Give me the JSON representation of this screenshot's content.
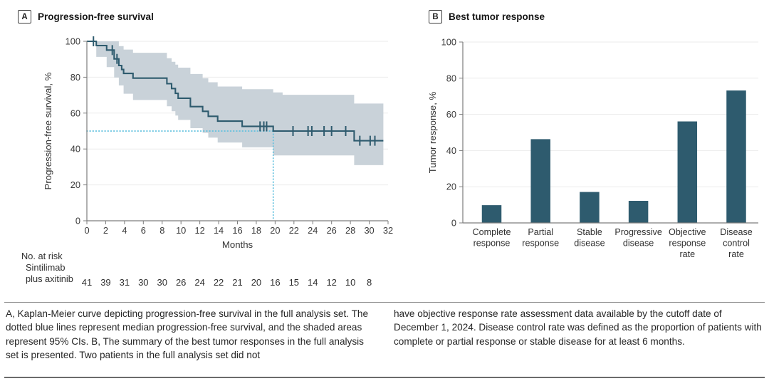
{
  "panels": {
    "a": {
      "badge": "A",
      "title": "Progression-free survival"
    },
    "b": {
      "badge": "B",
      "title": "Best tumor response"
    }
  },
  "risk_table": {
    "label": "No. at risk",
    "row_label_line1": "Sintilimab",
    "row_label_line2": "plus axitinib",
    "months": [
      0,
      2,
      4,
      6,
      8,
      10,
      12,
      14,
      16,
      18,
      20,
      22,
      24,
      26,
      28,
      30
    ],
    "values": [
      41,
      39,
      31,
      30,
      30,
      26,
      24,
      22,
      21,
      20,
      16,
      15,
      14,
      12,
      10,
      8
    ]
  },
  "caption": {
    "left": "A, Kaplan-Meier curve depicting progression-free survival in the full analysis set. The dotted blue lines represent median progression-free survival, and the shaded areas represent 95% CIs. B, The summary of the best tumor responses in the full analysis set is presented. Two patients in the full analysis set did not",
    "right": "have objective response rate assessment data available by the cutoff date of December 1, 2024. Disease control rate was defined as the proportion of patients with complete or partial response or stable disease for at least 6 months."
  },
  "chart_data": [
    {
      "type": "line",
      "subtype": "kaplan_meier_step",
      "panel": "A",
      "title": "Progression-free survival",
      "xlabel": "Months",
      "ylabel": "Progression-free survival, %",
      "xlim": [
        0,
        32
      ],
      "ylim": [
        0,
        100
      ],
      "xticks": [
        0,
        2,
        4,
        6,
        8,
        10,
        12,
        14,
        16,
        18,
        20,
        22,
        24,
        26,
        28,
        30,
        32
      ],
      "yticks": [
        0,
        20,
        40,
        60,
        80,
        100
      ],
      "grid": "horizontal",
      "legend_position": "none",
      "colors": {
        "line": "#2e5b6e",
        "ci_band": "#c9d2d9",
        "median_dotted": "#5fc0de"
      },
      "median_reference": {
        "x": 19.8,
        "y": 50
      },
      "series": [
        {
          "name": "Sintilimab plus axitinib",
          "steps": [
            [
              0,
              100
            ],
            [
              1.0,
              97.6
            ],
            [
              2.1,
              95.1
            ],
            [
              2.9,
              90.2
            ],
            [
              3.4,
              86.5
            ],
            [
              3.7,
              84.3
            ],
            [
              3.9,
              82.1
            ],
            [
              4.9,
              79.5
            ],
            [
              8.5,
              76.4
            ],
            [
              9.0,
              73.7
            ],
            [
              9.4,
              71.0
            ],
            [
              9.7,
              68.3
            ],
            [
              11.0,
              63.6
            ],
            [
              12.3,
              61.0
            ],
            [
              12.9,
              58.2
            ],
            [
              13.9,
              55.5
            ],
            [
              16.5,
              52.6
            ],
            [
              19.8,
              50.0
            ],
            [
              28.4,
              44.6
            ]
          ],
          "end_time": 31.5,
          "censor_marks": [
            [
              0.7,
              100
            ],
            [
              2.7,
              95.1
            ],
            [
              3.2,
              90.2
            ],
            [
              18.4,
              52.6
            ],
            [
              18.8,
              52.6
            ],
            [
              19.1,
              52.6
            ],
            [
              21.9,
              50.0
            ],
            [
              23.5,
              50.0
            ],
            [
              23.9,
              50.0
            ],
            [
              25.2,
              50.0
            ],
            [
              26.0,
              50.0
            ],
            [
              27.5,
              50.0
            ],
            [
              29.0,
              44.6
            ],
            [
              30.1,
              44.6
            ],
            [
              30.6,
              44.6
            ]
          ],
          "ci_upper": [
            [
              0,
              100
            ],
            [
              3.4,
              97.3
            ],
            [
              3.9,
              95.4
            ],
            [
              4.9,
              93.6
            ],
            [
              8.5,
              90.6
            ],
            [
              9.0,
              88.6
            ],
            [
              9.4,
              87.0
            ],
            [
              9.7,
              85.3
            ],
            [
              11.0,
              81.8
            ],
            [
              12.3,
              79.5
            ],
            [
              12.9,
              77.2
            ],
            [
              13.9,
              74.8
            ],
            [
              16.5,
              73.3
            ],
            [
              19.8,
              71.5
            ],
            [
              20.8,
              70.2
            ],
            [
              28.4,
              65.3
            ]
          ],
          "ci_lower": [
            [
              0,
              100
            ],
            [
              1.0,
              91.3
            ],
            [
              2.1,
              85.6
            ],
            [
              2.9,
              79.8
            ],
            [
              3.4,
              75.4
            ],
            [
              3.9,
              70.8
            ],
            [
              4.9,
              67.3
            ],
            [
              8.5,
              63.8
            ],
            [
              9.0,
              61.0
            ],
            [
              9.4,
              58.6
            ],
            [
              9.7,
              56.2
            ],
            [
              11.0,
              51.6
            ],
            [
              12.3,
              49.0
            ],
            [
              12.9,
              46.3
            ],
            [
              13.9,
              43.6
            ],
            [
              16.5,
              40.9
            ],
            [
              19.8,
              36.4
            ],
            [
              28.4,
              31.0
            ]
          ]
        }
      ]
    },
    {
      "type": "bar",
      "panel": "B",
      "title": "Best tumor response",
      "xlabel": "",
      "ylabel": "Tumor response, %",
      "ylim": [
        0,
        100
      ],
      "yticks": [
        0,
        20,
        40,
        60,
        80,
        100
      ],
      "grid": "horizontal",
      "bar_color": "#2e5b6e",
      "categories": [
        "Complete response",
        "Partial response",
        "Stable disease",
        "Progressive disease",
        "Objective response rate",
        "Disease control rate"
      ],
      "category_label_lines": [
        [
          "Complete",
          "response"
        ],
        [
          "Partial",
          "response"
        ],
        [
          "Stable",
          "disease"
        ],
        [
          "Progressive",
          "disease"
        ],
        [
          "Objective",
          "response",
          "rate"
        ],
        [
          "Disease",
          "control",
          "rate"
        ]
      ],
      "values": [
        9.8,
        46.3,
        17.1,
        12.2,
        56.1,
        73.2
      ]
    }
  ]
}
